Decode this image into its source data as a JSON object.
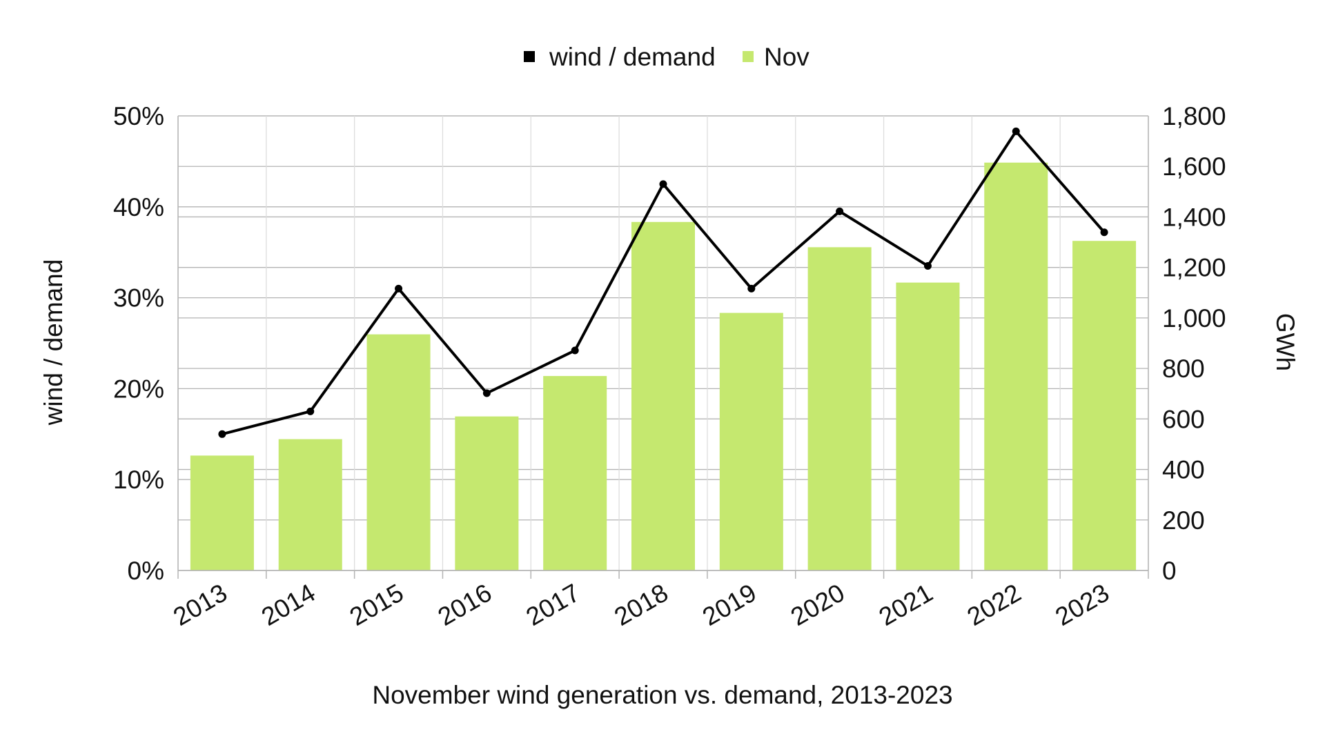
{
  "chart_data": {
    "type": "bar+line",
    "categories": [
      "2013",
      "2014",
      "2015",
      "2016",
      "2017",
      "2018",
      "2019",
      "2020",
      "2021",
      "2022",
      "2023"
    ],
    "series": [
      {
        "name": "wind / demand",
        "type": "line",
        "axis": "left",
        "color": "#000000",
        "values": [
          0.15,
          0.175,
          0.31,
          0.195,
          0.242,
          0.425,
          0.31,
          0.395,
          0.335,
          0.483,
          0.372
        ]
      },
      {
        "name": "Nov",
        "type": "bar",
        "axis": "right",
        "color": "#c5e86f",
        "values": [
          455,
          520,
          935,
          610,
          770,
          1380,
          1020,
          1280,
          1140,
          1615,
          1305
        ]
      }
    ],
    "title": "",
    "xlabel": "November wind generation vs. demand, 2013-2023",
    "ylabel_left": "wind / demand",
    "ylabel_right": "GWh",
    "ylim_left": [
      0,
      0.5
    ],
    "ylim_right": [
      0,
      1800
    ],
    "left_ticks": [
      "0%",
      "10%",
      "20%",
      "30%",
      "40%",
      "50%"
    ],
    "right_ticks": [
      "0",
      "200",
      "400",
      "600",
      "800",
      "1,000",
      "1,200",
      "1,400",
      "1,600",
      "1,800"
    ],
    "legend_position": "top",
    "grid": true
  }
}
